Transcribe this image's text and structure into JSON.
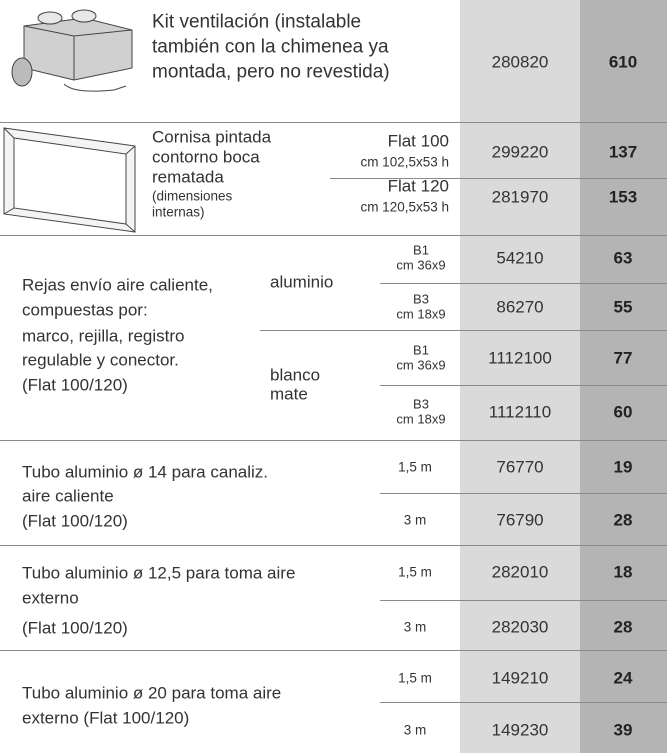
{
  "rows": [
    {
      "description": [
        "Kit ventilación (instalable",
        "también con la chimenea ya",
        "montada, pero no revestida)"
      ],
      "code": "280820",
      "price": 610
    },
    {
      "description": [
        "Cornisa pintada",
        "contorno boca",
        "rematada"
      ],
      "note": [
        "(dimensiones",
        "internas)"
      ],
      "items": [
        {
          "model": "Flat 100",
          "size": "cm 102,5x53 h",
          "code": "299220",
          "price": 137
        },
        {
          "model": "Flat 120",
          "size": "cm 120,5x53 h",
          "code": "281970",
          "price": 153
        }
      ]
    },
    {
      "description": [
        "Rejas envío aire caliente,",
        "compuestas por:",
        "marco, rejilla, registro",
        "regulable y conector.",
        "(Flat 100/120)"
      ],
      "groups": [
        {
          "finish": [
            "aluminio"
          ],
          "items": [
            {
              "model": "B1",
              "size": "cm 36x9",
              "code": "54210",
              "price": 63
            },
            {
              "model": "B3",
              "size": "cm 18x9",
              "code": "86270",
              "price": 55
            }
          ]
        },
        {
          "finish": [
            "blanco",
            "mate"
          ],
          "items": [
            {
              "model": "B1",
              "size": "cm 36x9",
              "code": "1112100",
              "price": 77
            },
            {
              "model": "B3",
              "size": "cm 18x9",
              "code": "1112110",
              "price": 60
            }
          ]
        }
      ]
    },
    {
      "description": [
        "Tubo aluminio ø 14 para canaliz.",
        "aire caliente",
        "(Flat 100/120)"
      ],
      "items": [
        {
          "length": "1,5 m",
          "code": "76770",
          "price": 19
        },
        {
          "length": "3 m",
          "code": "76790",
          "price": 28
        }
      ]
    },
    {
      "description": [
        "Tubo aluminio ø 12,5 para toma aire",
        "externo",
        "(Flat 100/120)"
      ],
      "items": [
        {
          "length": "1,5 m",
          "code": "282010",
          "price": 18
        },
        {
          "length": "3 m",
          "code": "282030",
          "price": 28
        }
      ]
    },
    {
      "description": [
        "Tubo aluminio ø 20 para toma aire",
        "externo (Flat 100/120)"
      ],
      "items": [
        {
          "length": "1,5 m",
          "code": "149210",
          "price": 24
        },
        {
          "length": "3 m",
          "code": "149230",
          "price": 39
        }
      ]
    }
  ]
}
